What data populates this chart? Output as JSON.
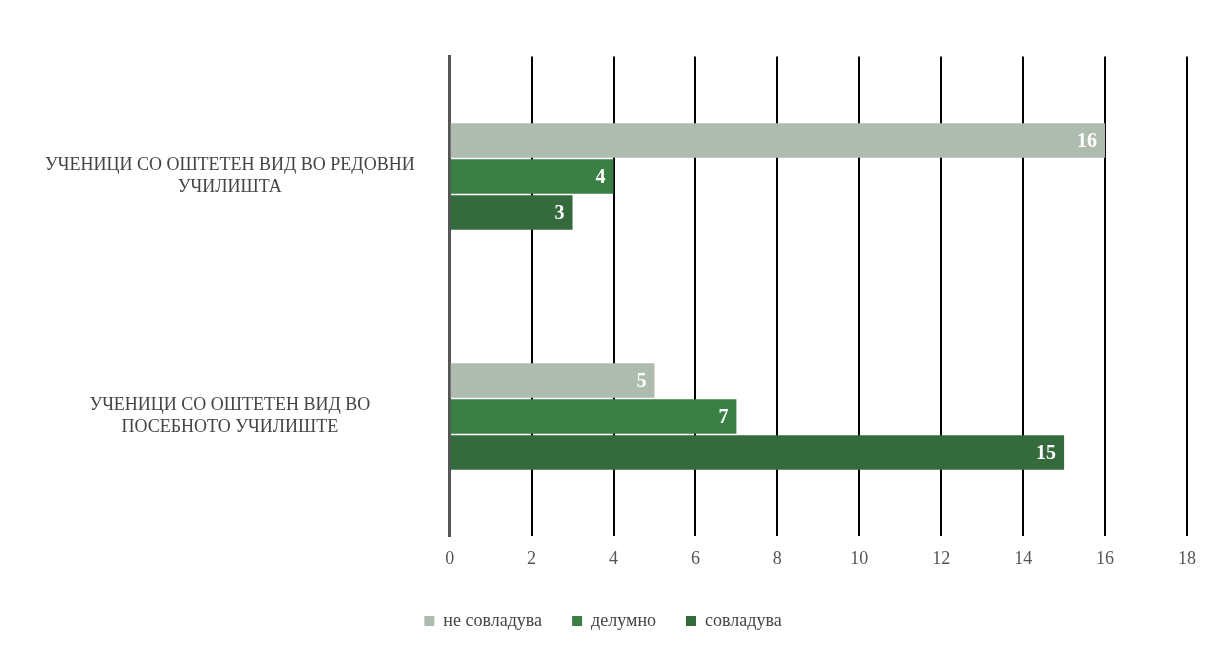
{
  "chart_data": {
    "type": "bar",
    "orientation": "horizontal",
    "categories": [
      "УЧЕНИЦИ СО ОШТЕТЕН ВИД ВО РЕДОВНИ УЧИЛИШТА",
      "УЧЕНИЦИ СО ОШТЕТЕН ВИД ВО ПОСЕБНОТО УЧИЛИШТЕ"
    ],
    "series": [
      {
        "name": "не совладува",
        "color": "#adbcae",
        "values": [
          16,
          5
        ]
      },
      {
        "name": "делумно",
        "color": "#3a8045",
        "values": [
          4,
          7
        ]
      },
      {
        "name": "совладува",
        "color": "#356b3c",
        "values": [
          3,
          15
        ]
      }
    ],
    "xlim": [
      0,
      18
    ],
    "xticks": [
      0,
      2,
      4,
      6,
      8,
      10,
      12,
      14,
      16,
      18
    ],
    "grid": "x",
    "legend": "bottom",
    "data_labels": true
  }
}
